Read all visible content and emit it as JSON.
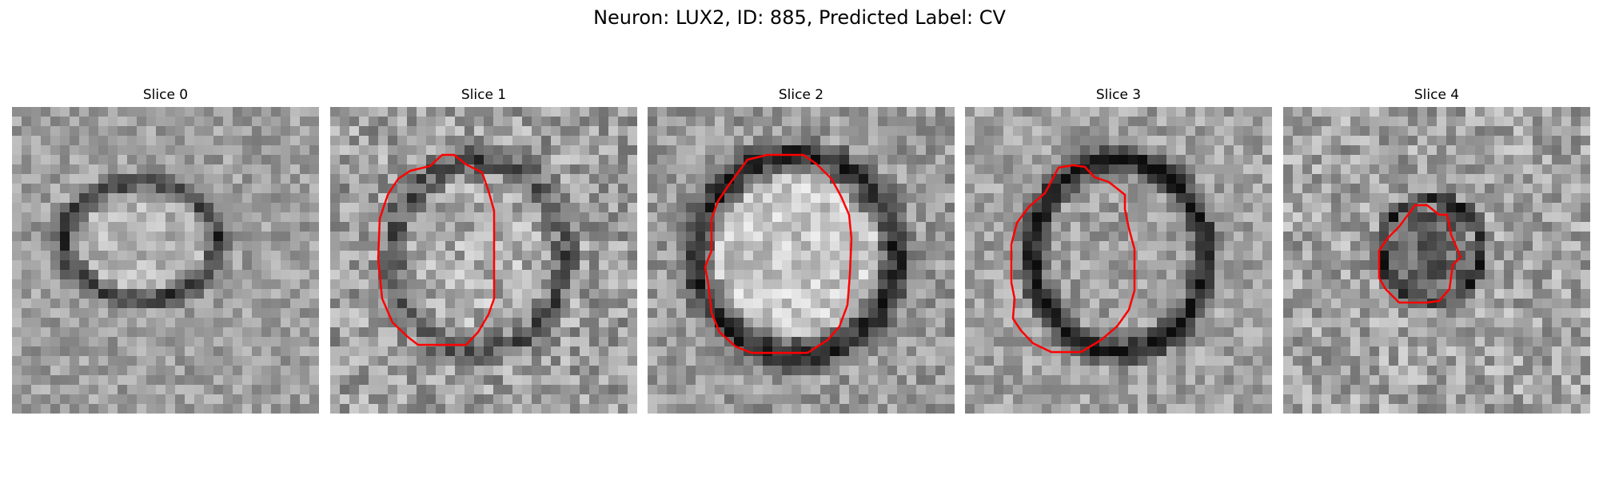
{
  "figure": {
    "title": "Neuron: LUX2, ID: 885, Predicted Label: CV"
  },
  "panels": [
    {
      "title": "Slice 0",
      "has_contour": false
    },
    {
      "title": "Slice 1",
      "has_contour": true
    },
    {
      "title": "Slice 2",
      "has_contour": true
    },
    {
      "title": "Slice 3",
      "has_contour": true
    },
    {
      "title": "Slice 4",
      "has_contour": true
    }
  ],
  "colors": {
    "contour": "#ff0000",
    "background": "#ffffff"
  }
}
